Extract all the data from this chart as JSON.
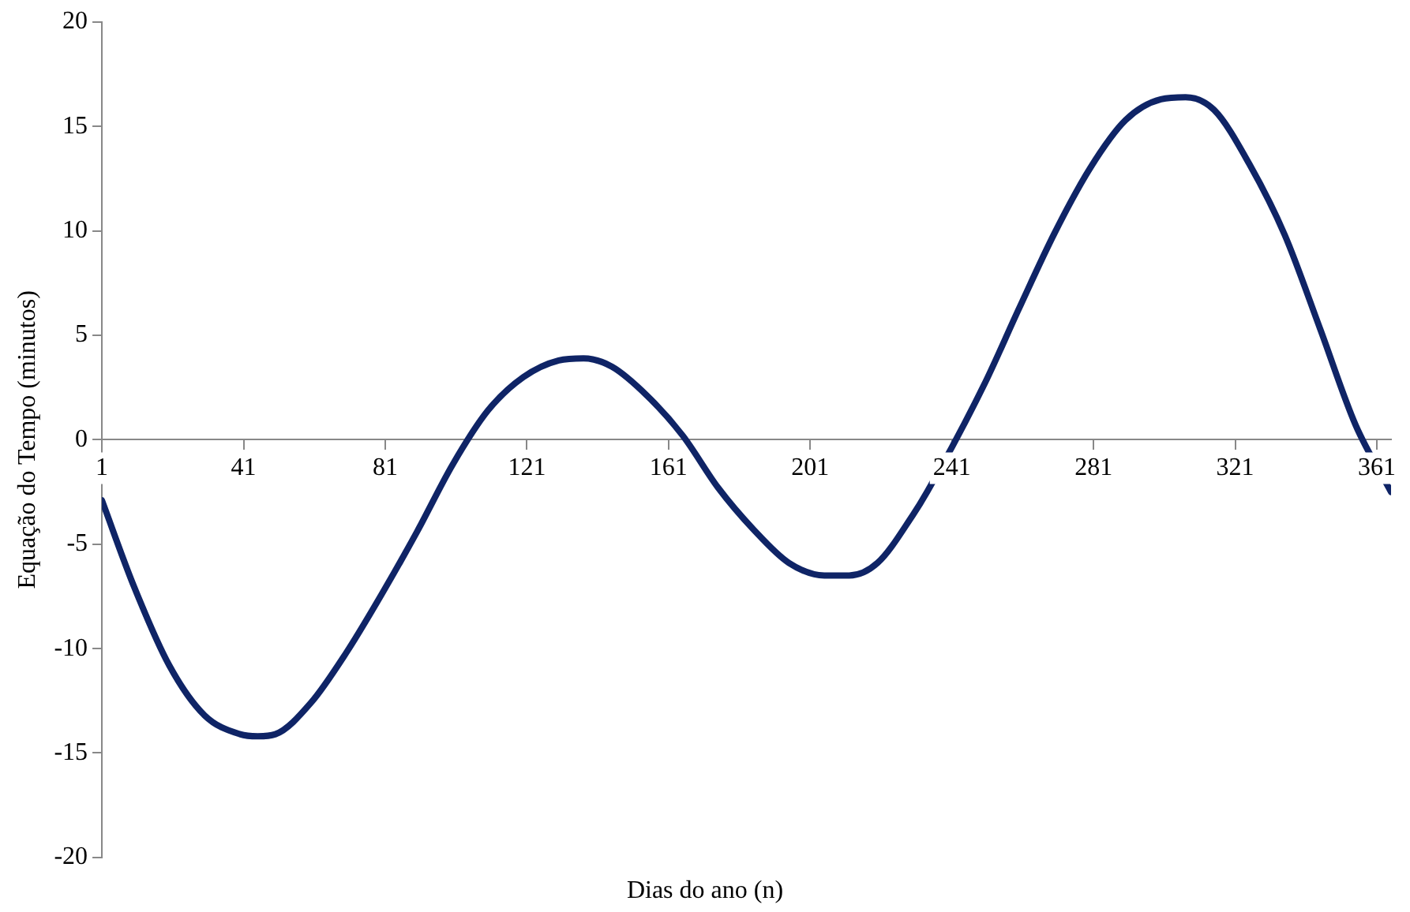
{
  "chart_data": {
    "type": "line",
    "xlabel": "Dias do ano (n)",
    "ylabel": "Equação do Tempo (minutos)",
    "x": [
      1,
      10,
      20,
      30,
      40,
      45,
      50,
      60,
      70,
      80,
      90,
      100,
      110,
      120,
      130,
      137,
      145,
      155,
      165,
      175,
      185,
      195,
      205,
      212,
      220,
      230,
      234,
      250,
      260,
      270,
      280,
      290,
      300,
      307,
      315,
      325,
      335,
      345,
      355,
      365
    ],
    "series": [
      {
        "color": "#0f2466",
        "values": [
          -2.9,
          -7.0,
          -10.8,
          -13.2,
          -14.1,
          -14.2,
          -14.1,
          -12.6,
          -10.2,
          -7.4,
          -4.4,
          -1.2,
          1.4,
          3.0,
          3.8,
          3.9,
          3.5,
          2.1,
          0.2,
          -2.3,
          -4.3,
          -5.9,
          -6.5,
          -6.5,
          -5.9,
          -3.6,
          -2.5,
          2.6,
          6.3,
          9.9,
          13.0,
          15.3,
          16.3,
          16.4,
          15.8,
          13.2,
          9.8,
          5.3,
          0.7,
          -2.5
        ]
      }
    ],
    "xlim": [
      1,
      365
    ],
    "xticks": [
      1,
      41,
      81,
      121,
      161,
      201,
      241,
      281,
      321,
      361
    ],
    "ylim": [
      -20,
      20
    ],
    "yticks": [
      -20,
      -15,
      -10,
      -5,
      0,
      5,
      10,
      15,
      20
    ],
    "grid": false,
    "legend": false,
    "marker": "none",
    "line_style": "solid"
  }
}
